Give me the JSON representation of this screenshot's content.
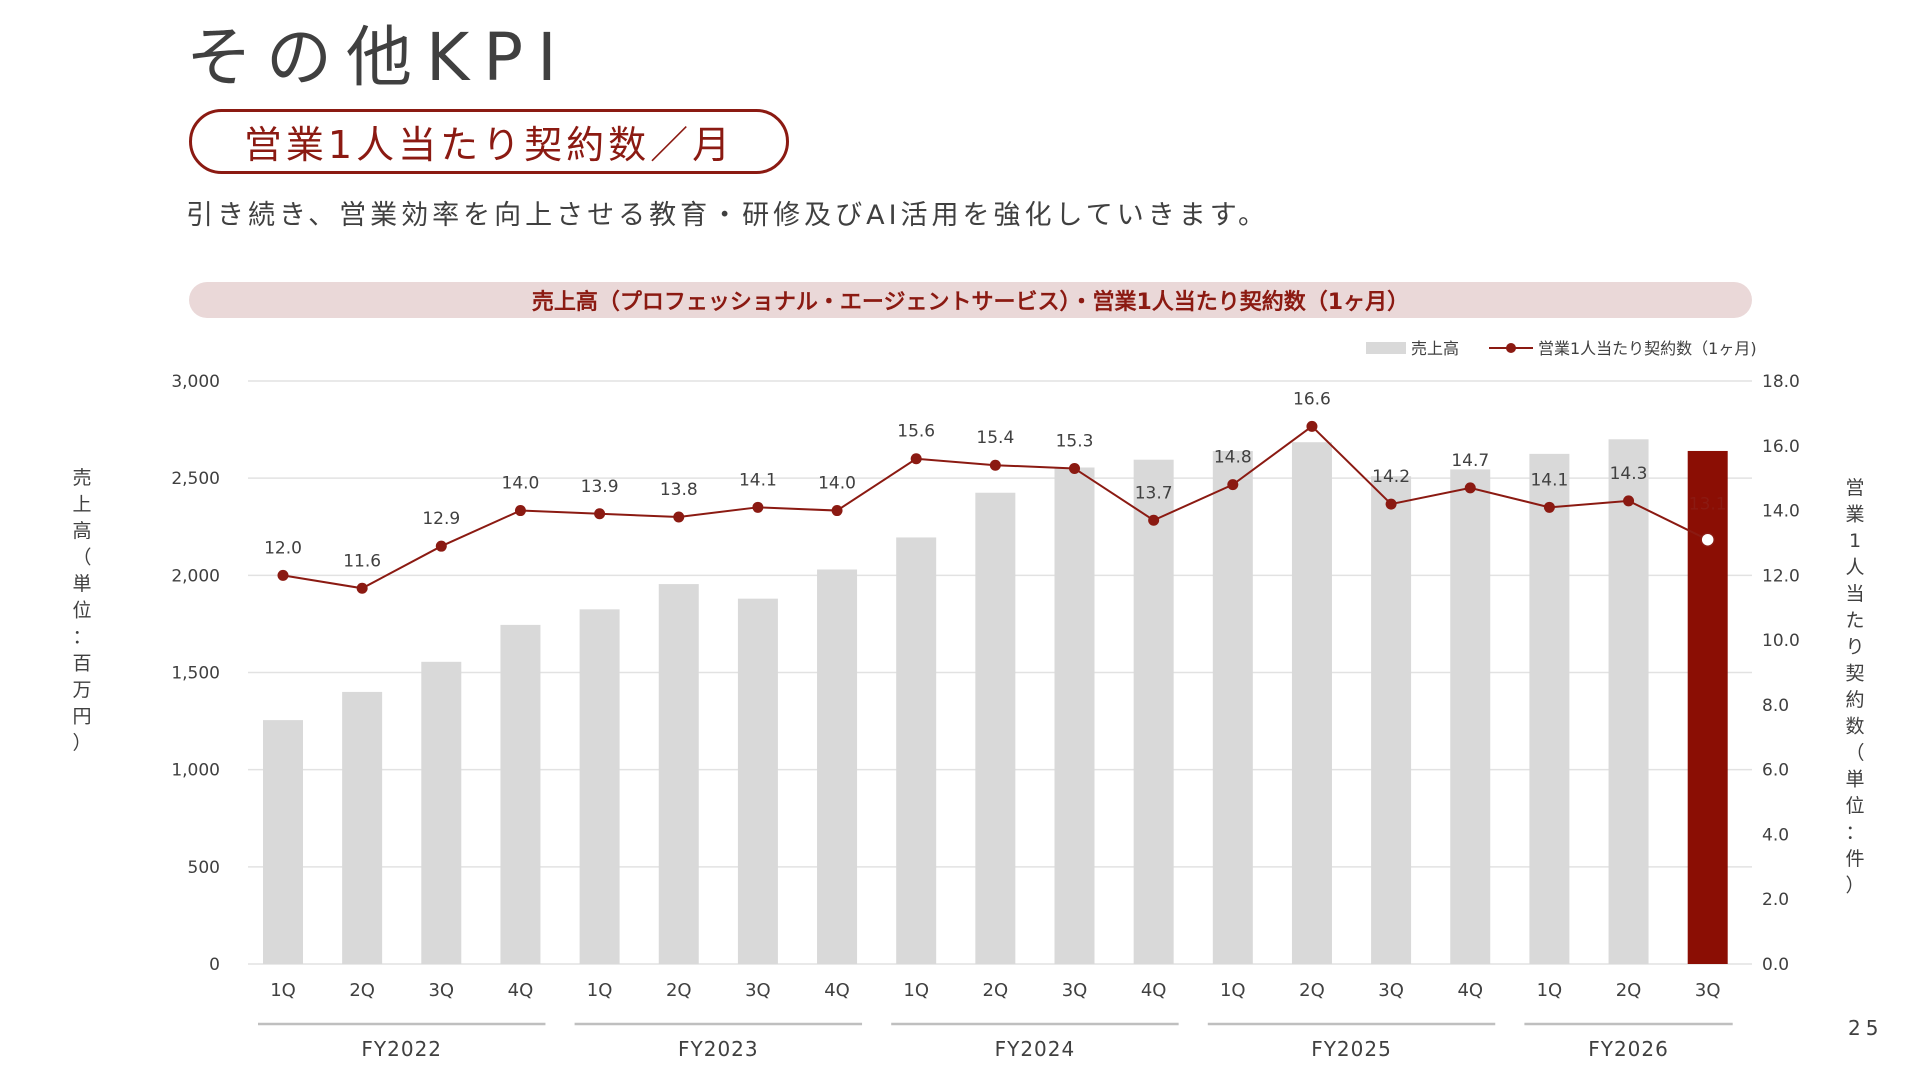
{
  "page": {
    "title": "その他KPI",
    "badge": "営業1人当たり契約数／月",
    "lead": "引き続き、営業効率を向上させる教育・研修及びAI活用を強化していきます。",
    "page_number": "25"
  },
  "chart_data": {
    "type": "bar",
    "title": "売上高（プロフェッショナル・エージェントサービス）・営業1人当たり契約数（1ヶ月）",
    "legend": {
      "placement": "top-right",
      "bar": "売上高",
      "line": "営業1人当たり契約数（1ヶ月)"
    },
    "categories": [
      "1Q",
      "2Q",
      "3Q",
      "4Q",
      "1Q",
      "2Q",
      "3Q",
      "4Q",
      "1Q",
      "2Q",
      "3Q",
      "4Q",
      "1Q",
      "2Q",
      "3Q",
      "4Q",
      "1Q",
      "2Q",
      "3Q"
    ],
    "groups": [
      {
        "label": "FY2022",
        "count": 4
      },
      {
        "label": "FY2023",
        "count": 4
      },
      {
        "label": "FY2024",
        "count": 4
      },
      {
        "label": "FY2025",
        "count": 4
      },
      {
        "label": "FY2026",
        "count": 3
      }
    ],
    "ylabel_left": "売上高（単位：百万円）",
    "ylabel_right": "営業1人当たり契約数（単位：件）",
    "ylim_left": [
      0,
      3000
    ],
    "yticks_left": [
      "0",
      "500",
      "1,000",
      "1,500",
      "2,000",
      "2,500",
      "3,000"
    ],
    "ylim_right": [
      0,
      18
    ],
    "yticks_right": [
      "0.0",
      "2.0",
      "4.0",
      "6.0",
      "8.0",
      "10.0",
      "12.0",
      "14.0",
      "16.0",
      "18.0"
    ],
    "grid": true,
    "series": [
      {
        "name": "売上高",
        "type": "bar",
        "axis": "left",
        "values": [
          1255,
          1400,
          1555,
          1745,
          1825,
          1955,
          1880,
          2030,
          2195,
          2425,
          2555,
          2595,
          2640,
          2685,
          2510,
          2545,
          2625,
          2700,
          2640
        ]
      },
      {
        "name": "営業1人当たり契約数（1ヶ月)",
        "type": "line",
        "axis": "right",
        "values": [
          12.0,
          11.6,
          12.9,
          14.0,
          13.9,
          13.8,
          14.1,
          14.0,
          15.6,
          15.4,
          15.3,
          13.7,
          14.8,
          16.6,
          14.2,
          14.7,
          14.1,
          14.3,
          13.1
        ],
        "labels": [
          "12.0",
          "11.6",
          "12.9",
          "14.0",
          "13.9",
          "13.8",
          "14.1",
          "14.0",
          "15.6",
          "15.4",
          "15.3",
          "13.7",
          "14.8",
          "16.6",
          "14.2",
          "14.7",
          "14.1",
          "14.3",
          "13.1"
        ]
      }
    ],
    "colors": {
      "bar": "#d9d9d9",
      "bar_highlight": "#8b0e04",
      "line": "#8b1a12",
      "grid": "#e2e2e2",
      "axis_text": "#404040",
      "group_line": "#bfbfbf"
    }
  }
}
